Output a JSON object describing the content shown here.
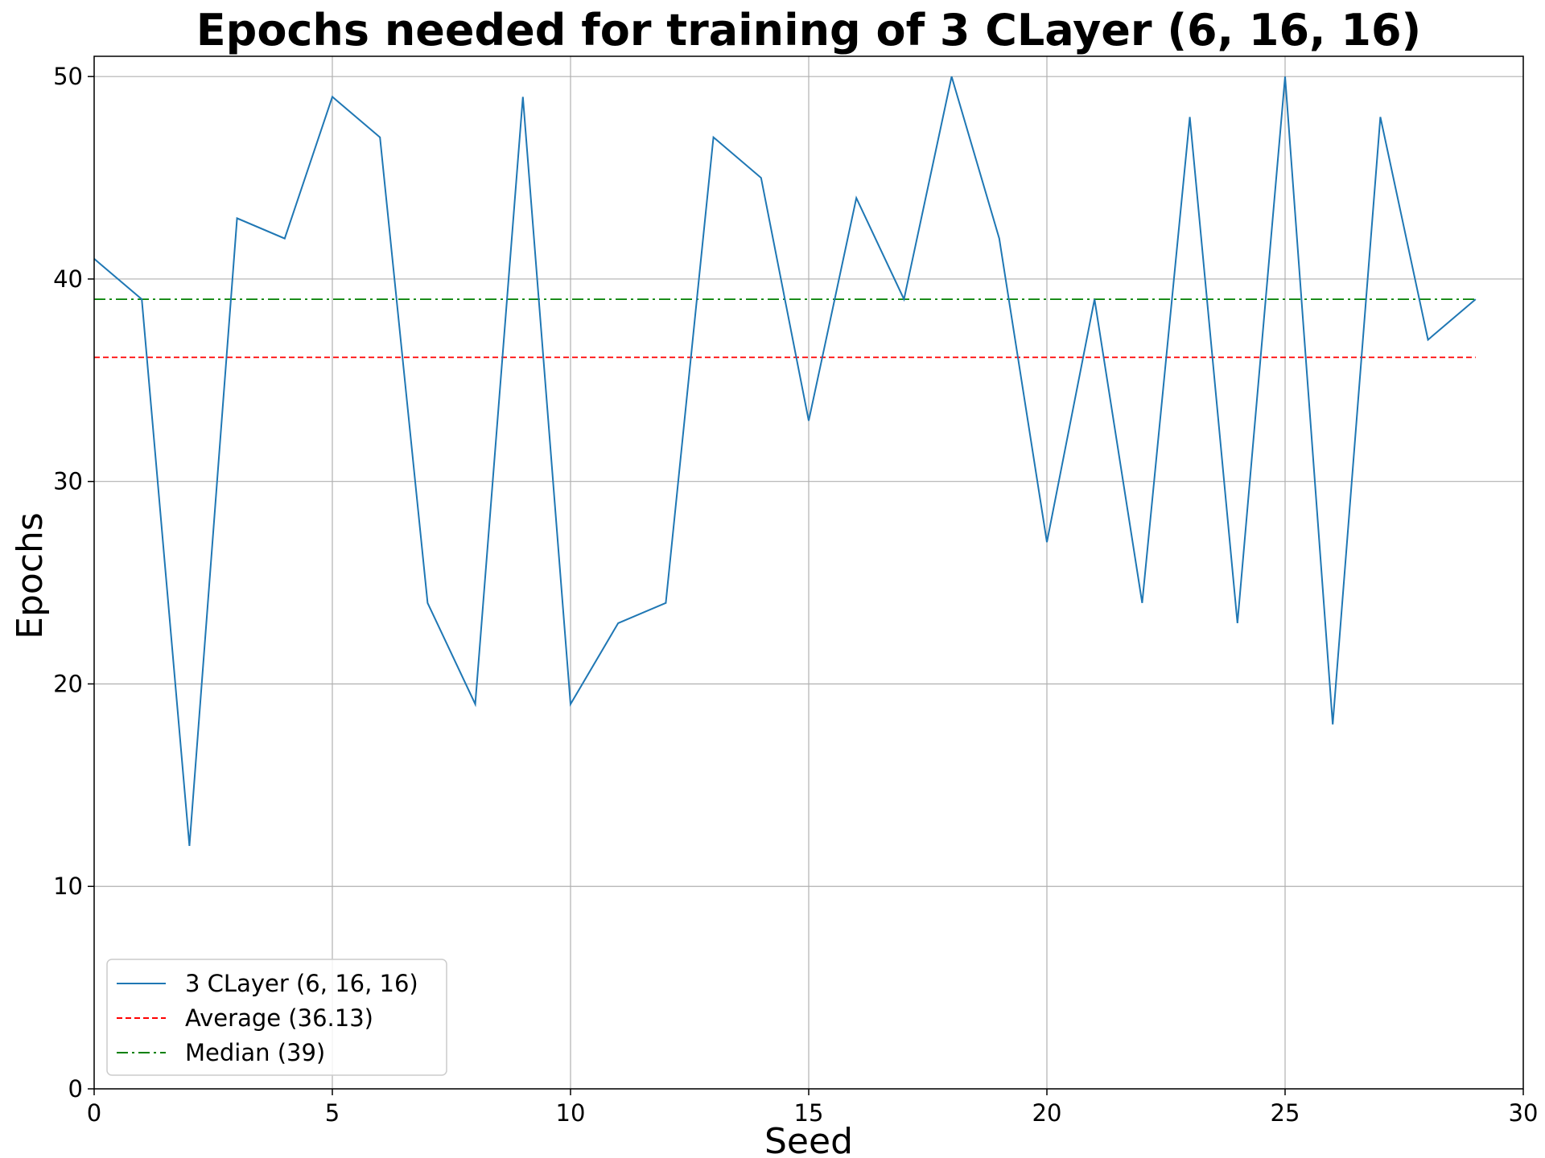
{
  "chart_data": {
    "type": "line",
    "title": "Epochs needed for training of 3 CLayer (6, 16, 16)",
    "xlabel": "Seed",
    "ylabel": "Epochs",
    "xlim": [
      0,
      30
    ],
    "ylim": [
      0,
      51
    ],
    "xticks": [
      0,
      5,
      10,
      15,
      20,
      25,
      30
    ],
    "yticks": [
      0,
      10,
      20,
      30,
      40,
      50
    ],
    "grid": true,
    "legend_position": "lower-left",
    "x": [
      0,
      1,
      2,
      3,
      4,
      5,
      6,
      7,
      8,
      9,
      10,
      11,
      12,
      13,
      14,
      15,
      16,
      17,
      18,
      19,
      20,
      21,
      22,
      23,
      24,
      25,
      26,
      27,
      28,
      29
    ],
    "series": [
      {
        "name": "3 CLayer (6, 16, 16)",
        "color": "#1f77b4",
        "style": "solid",
        "values": [
          41,
          39,
          12,
          43,
          42,
          49,
          47,
          24,
          19,
          49,
          19,
          23,
          24,
          47,
          45,
          33,
          44,
          39,
          50,
          42,
          27,
          39,
          24,
          48,
          23,
          50,
          18,
          48,
          37,
          39
        ]
      },
      {
        "name": "Average (36.13)",
        "color": "#ff0000",
        "style": "dashed",
        "constant": 36.13
      },
      {
        "name": "Median (39)",
        "color": "#008000",
        "style": "dashdot",
        "constant": 39
      }
    ]
  }
}
